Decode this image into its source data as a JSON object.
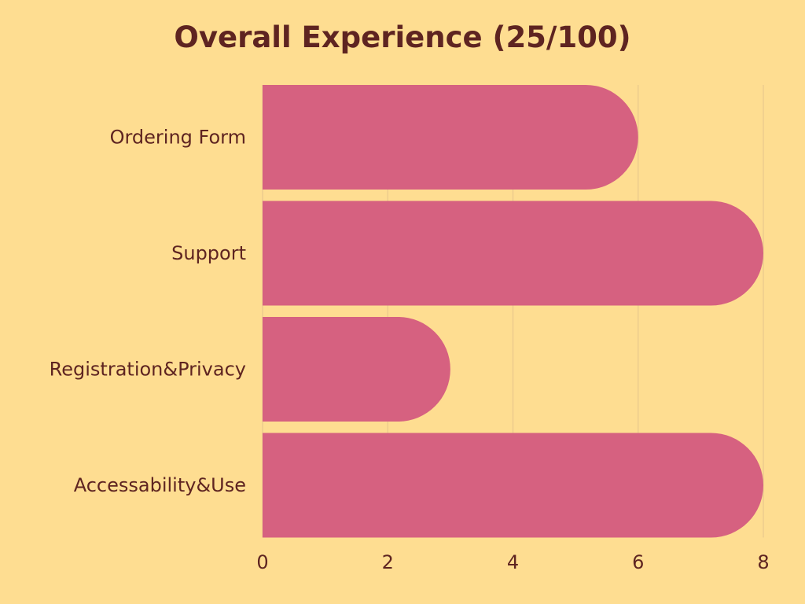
{
  "chart_data": {
    "type": "bar",
    "orientation": "horizontal",
    "title": "Overall Experience (25/100)",
    "categories": [
      "Ordering Form",
      "Support",
      "Registration&Privacy",
      "Accessability&Use"
    ],
    "values": [
      6,
      8,
      3,
      8
    ],
    "xlim": [
      0,
      8
    ],
    "xticks": [
      0,
      2,
      4,
      6,
      8
    ],
    "xlabel": "",
    "ylabel": "",
    "grid": true,
    "legend": "none",
    "colors": {
      "background": "#FEDD91",
      "bar": "#D66180",
      "text": "#5E2421",
      "grid": "#E8C88C"
    }
  }
}
